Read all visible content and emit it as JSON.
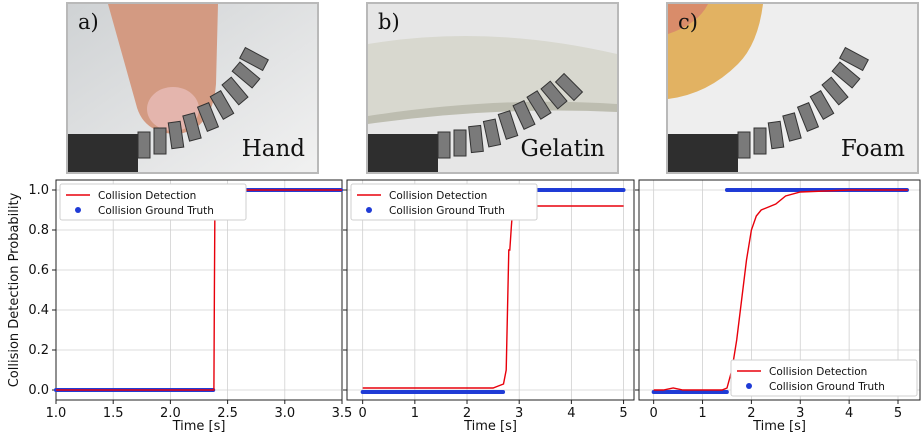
{
  "photos": [
    {
      "letter": "a)",
      "name": "Hand"
    },
    {
      "letter": "b)",
      "name": "Gelatin"
    },
    {
      "letter": "c)",
      "name": "Foam"
    }
  ],
  "colors": {
    "detection": "#e8000b",
    "ground_truth": "#1f3bd6"
  },
  "chart_data": [
    {
      "type": "line",
      "xlabel": "Time [s]",
      "ylabel": "Collision Detection Probability",
      "xlim": [
        1.0,
        3.5
      ],
      "ylim": [
        -0.05,
        1.05
      ],
      "xticks": [
        "1.0",
        "1.5",
        "2.0",
        "2.5",
        "3.0",
        "3.5"
      ],
      "yticks": [
        "0.0",
        "0.2",
        "0.4",
        "0.6",
        "0.8",
        "1.0"
      ],
      "grid": true,
      "legend": "top-left",
      "series": [
        {
          "name": "Collision Detection",
          "kind": "line",
          "x": [
            1.0,
            2.38,
            2.385,
            2.39,
            3.5
          ],
          "y": [
            0.0,
            0.0,
            0.5,
            1.0,
            1.0
          ]
        },
        {
          "name": "Collision Ground Truth",
          "kind": "points",
          "segments": [
            [
              1.0,
              2.38,
              0.0
            ],
            [
              2.38,
              3.5,
              1.0
            ]
          ]
        }
      ]
    },
    {
      "type": "line",
      "xlabel": "Time [s]",
      "ylabel": "",
      "xlim": [
        -0.3,
        5.2
      ],
      "ylim": [
        -0.05,
        1.05
      ],
      "xticks": [
        "0",
        "1",
        "2",
        "3",
        "4",
        "5"
      ],
      "yticks": [],
      "grid": true,
      "legend": "top-left",
      "series": [
        {
          "name": "Collision Detection",
          "kind": "line",
          "x": [
            0.0,
            2.5,
            2.6,
            2.7,
            2.75,
            2.8,
            2.82,
            2.85,
            2.88,
            2.9,
            2.95,
            5.0
          ],
          "y": [
            0.01,
            0.01,
            0.02,
            0.03,
            0.1,
            0.7,
            0.7,
            0.82,
            0.92,
            0.92,
            0.92,
            0.92
          ]
        },
        {
          "name": "Collision Ground Truth",
          "kind": "points",
          "segments": [
            [
              0.0,
              2.7,
              -0.01
            ],
            [
              2.7,
              5.0,
              1.0
            ]
          ]
        }
      ]
    },
    {
      "type": "line",
      "xlabel": "Time [s]",
      "ylabel": "",
      "xlim": [
        -0.3,
        5.45
      ],
      "ylim": [
        -0.05,
        1.05
      ],
      "xticks": [
        "0",
        "1",
        "2",
        "3",
        "4",
        "5"
      ],
      "yticks": [],
      "grid": true,
      "legend": "bottom-right",
      "series": [
        {
          "name": "Collision Detection",
          "kind": "line",
          "x": [
            0.0,
            0.2,
            0.4,
            0.6,
            0.8,
            1.0,
            1.2,
            1.4,
            1.5,
            1.6,
            1.7,
            1.8,
            1.9,
            2.0,
            2.1,
            2.2,
            2.3,
            2.5,
            2.7,
            3.0,
            3.5,
            4.0,
            5.2
          ],
          "y": [
            0.0,
            0.0,
            0.01,
            0.0,
            0.0,
            0.0,
            0.0,
            0.0,
            0.01,
            0.1,
            0.25,
            0.45,
            0.65,
            0.8,
            0.87,
            0.9,
            0.91,
            0.93,
            0.97,
            0.99,
            0.995,
            1.0,
            1.0
          ]
        },
        {
          "name": "Collision Ground Truth",
          "kind": "points",
          "segments": [
            [
              0.0,
              1.5,
              -0.01
            ],
            [
              1.5,
              5.2,
              1.0
            ]
          ]
        }
      ]
    }
  ]
}
